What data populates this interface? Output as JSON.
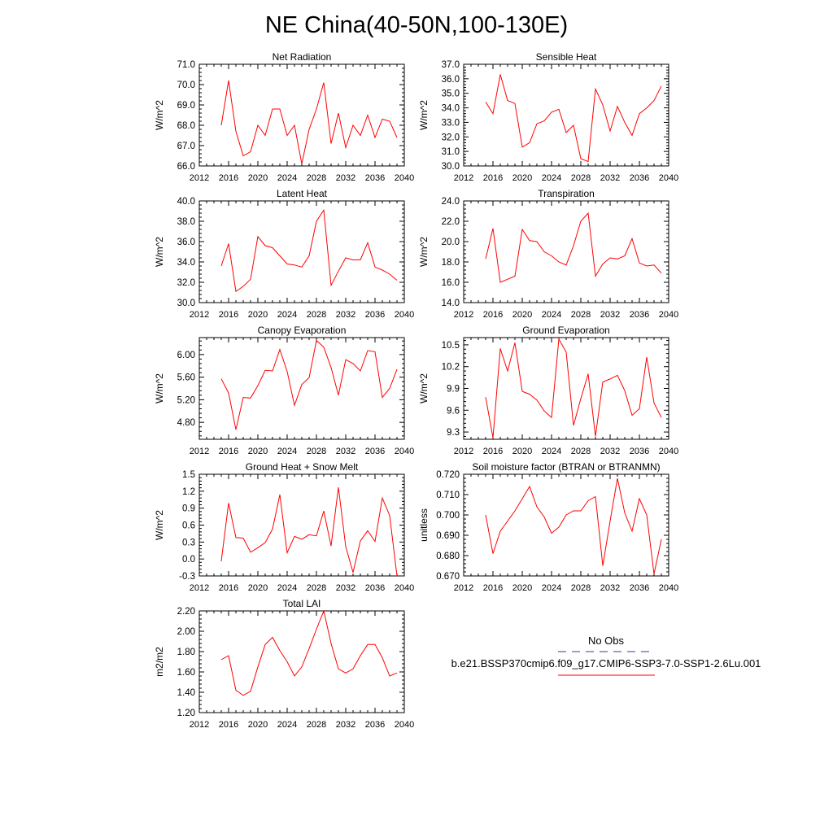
{
  "page_title": "NE China(40-50N,100-130E)",
  "legend": {
    "obs_label": "No Obs",
    "obs_color": "#3a3a9a",
    "model_label": "b.e21.BSSP370cmip6.f09_g17.CMIP6-SSP3-7.0-SSP1-2.6Lu.001",
    "model_color": "#ff0000"
  },
  "x_ticks": [
    "2012",
    "2016",
    "2020",
    "2024",
    "2028",
    "2032",
    "2036",
    "2040"
  ],
  "chart_data": [
    {
      "type": "line",
      "title": "Net Radiation",
      "ylabel": "W/m^2",
      "xlim": [
        2012,
        2040
      ],
      "ylim": [
        66.0,
        71.0
      ],
      "yticks": [
        "66.0",
        "67.0",
        "68.0",
        "69.0",
        "70.0",
        "71.0"
      ],
      "series": [
        {
          "x": [
            2015,
            2016,
            2017,
            2018,
            2019,
            2020,
            2021,
            2022,
            2023,
            2024,
            2025,
            2026,
            2027,
            2028,
            2029,
            2030,
            2031,
            2032,
            2033,
            2034,
            2035,
            2036,
            2037,
            2038,
            2039
          ],
          "values": [
            68.0,
            70.2,
            67.7,
            66.5,
            66.7,
            68.0,
            67.5,
            68.8,
            68.8,
            67.5,
            68.0,
            66.1,
            67.8,
            68.8,
            70.1,
            67.1,
            68.6,
            66.9,
            68.0,
            67.5,
            68.5,
            67.4,
            68.3,
            68.2,
            67.4
          ]
        }
      ]
    },
    {
      "type": "line",
      "title": "Sensible Heat",
      "ylabel": "W/m^2",
      "xlim": [
        2012,
        2040
      ],
      "ylim": [
        30.0,
        37.0
      ],
      "yticks": [
        "30.0",
        "31.0",
        "32.0",
        "33.0",
        "34.0",
        "35.0",
        "36.0",
        "37.0"
      ],
      "series": [
        {
          "x": [
            2015,
            2016,
            2017,
            2018,
            2019,
            2020,
            2021,
            2022,
            2023,
            2024,
            2025,
            2026,
            2027,
            2028,
            2029,
            2030,
            2031,
            2032,
            2033,
            2034,
            2035,
            2036,
            2037,
            2038,
            2039
          ],
          "values": [
            34.4,
            33.6,
            36.3,
            34.5,
            34.3,
            31.3,
            31.6,
            32.9,
            33.1,
            33.7,
            33.9,
            32.3,
            32.8,
            30.5,
            30.3,
            35.3,
            34.2,
            32.4,
            34.1,
            33.0,
            32.1,
            33.6,
            34.0,
            34.5,
            35.5
          ]
        }
      ]
    },
    {
      "type": "line",
      "title": "Latent Heat",
      "ylabel": "W/m^2",
      "xlim": [
        2012,
        2040
      ],
      "ylim": [
        30.0,
        40.0
      ],
      "yticks": [
        "30.0",
        "32.0",
        "34.0",
        "36.0",
        "38.0",
        "40.0"
      ],
      "series": [
        {
          "x": [
            2015,
            2016,
            2017,
            2018,
            2019,
            2020,
            2021,
            2022,
            2023,
            2024,
            2025,
            2026,
            2027,
            2028,
            2029,
            2030,
            2031,
            2032,
            2033,
            2034,
            2035,
            2036,
            2037,
            2038,
            2039
          ],
          "values": [
            33.6,
            35.8,
            31.1,
            31.6,
            32.3,
            36.5,
            35.6,
            35.4,
            34.6,
            33.8,
            33.7,
            33.5,
            34.6,
            38.0,
            39.1,
            31.7,
            33.1,
            34.4,
            34.2,
            34.2,
            35.9,
            33.5,
            33.2,
            32.8,
            32.2
          ]
        }
      ]
    },
    {
      "type": "line",
      "title": "Transpiration",
      "ylabel": "W/m^2",
      "xlim": [
        2012,
        2040
      ],
      "ylim": [
        14.0,
        24.0
      ],
      "yticks": [
        "14.0",
        "16.0",
        "18.0",
        "20.0",
        "22.0",
        "24.0"
      ],
      "series": [
        {
          "x": [
            2015,
            2016,
            2017,
            2018,
            2019,
            2020,
            2021,
            2022,
            2023,
            2024,
            2025,
            2026,
            2027,
            2028,
            2029,
            2030,
            2031,
            2032,
            2033,
            2034,
            2035,
            2036,
            2037,
            2038,
            2039
          ],
          "values": [
            18.3,
            21.3,
            16.0,
            16.3,
            16.6,
            21.2,
            20.1,
            20.0,
            19.0,
            18.6,
            18.0,
            17.7,
            19.6,
            22.0,
            22.8,
            16.6,
            17.8,
            18.4,
            18.3,
            18.6,
            20.3,
            17.9,
            17.6,
            17.7,
            16.9
          ]
        }
      ]
    },
    {
      "type": "line",
      "title": "Canopy Evaporation",
      "ylabel": "W/m^2",
      "xlim": [
        2012,
        2040
      ],
      "ylim": [
        4.5,
        6.3
      ],
      "yticks": [
        "4.80",
        "5.20",
        "5.60",
        "6.00"
      ],
      "series": [
        {
          "x": [
            2015,
            2016,
            2017,
            2018,
            2019,
            2020,
            2021,
            2022,
            2023,
            2024,
            2025,
            2026,
            2027,
            2028,
            2029,
            2030,
            2031,
            2032,
            2033,
            2034,
            2035,
            2036,
            2037,
            2038,
            2039
          ],
          "values": [
            5.57,
            5.32,
            4.67,
            5.24,
            5.23,
            5.45,
            5.72,
            5.71,
            6.09,
            5.7,
            5.1,
            5.47,
            5.59,
            6.25,
            6.13,
            5.77,
            5.28,
            5.91,
            5.84,
            5.71,
            6.07,
            6.05,
            5.24,
            5.4,
            5.74
          ]
        }
      ]
    },
    {
      "type": "line",
      "title": "Ground Evaporation",
      "ylabel": "W/m^2",
      "xlim": [
        2012,
        2040
      ],
      "ylim": [
        9.2,
        10.6
      ],
      "yticks": [
        "9.3",
        "9.6",
        "9.9",
        "10.2",
        "10.5"
      ],
      "series": [
        {
          "x": [
            2015,
            2016,
            2017,
            2018,
            2019,
            2020,
            2021,
            2022,
            2023,
            2024,
            2025,
            2026,
            2027,
            2028,
            2029,
            2030,
            2031,
            2032,
            2033,
            2034,
            2035,
            2036,
            2037,
            2038,
            2039
          ],
          "values": [
            9.78,
            9.22,
            10.45,
            10.14,
            10.53,
            9.86,
            9.82,
            9.74,
            9.59,
            9.5,
            10.58,
            10.4,
            9.39,
            9.76,
            10.1,
            9.24,
            9.99,
            10.03,
            10.08,
            9.87,
            9.53,
            9.62,
            10.33,
            9.7,
            9.5
          ]
        }
      ]
    },
    {
      "type": "line",
      "title": "Ground Heat + Snow Melt",
      "ylabel": "W/m^2",
      "xlim": [
        2012,
        2040
      ],
      "ylim": [
        -0.3,
        1.5
      ],
      "yticks": [
        "-0.3",
        "0.0",
        "0.3",
        "0.6",
        "0.9",
        "1.2",
        "1.5"
      ],
      "series": [
        {
          "x": [
            2015,
            2016,
            2017,
            2018,
            2019,
            2020,
            2021,
            2022,
            2023,
            2024,
            2025,
            2026,
            2027,
            2028,
            2029,
            2030,
            2031,
            2032,
            2033,
            2034,
            2035,
            2036,
            2037,
            2038,
            2039
          ],
          "values": [
            -0.04,
            0.99,
            0.38,
            0.37,
            0.12,
            0.2,
            0.29,
            0.53,
            1.14,
            0.11,
            0.4,
            0.35,
            0.43,
            0.41,
            0.85,
            0.23,
            1.27,
            0.22,
            -0.24,
            0.32,
            0.5,
            0.31,
            1.08,
            0.77,
            -0.3
          ]
        }
      ]
    },
    {
      "type": "line",
      "title": "Soil moisture factor (BTRAN or BTRANMN)",
      "ylabel": "unitless",
      "xlim": [
        2012,
        2040
      ],
      "ylim": [
        0.67,
        0.72
      ],
      "yticks": [
        "0.670",
        "0.680",
        "0.690",
        "0.700",
        "0.710",
        "0.720"
      ],
      "series": [
        {
          "x": [
            2015,
            2016,
            2017,
            2018,
            2019,
            2020,
            2021,
            2022,
            2023,
            2024,
            2025,
            2026,
            2027,
            2028,
            2029,
            2030,
            2031,
            2032,
            2033,
            2034,
            2035,
            2036,
            2037,
            2038,
            2039
          ],
          "values": [
            0.7,
            0.681,
            0.692,
            0.697,
            0.702,
            0.708,
            0.714,
            0.704,
            0.699,
            0.691,
            0.694,
            0.7,
            0.702,
            0.702,
            0.707,
            0.709,
            0.675,
            0.697,
            0.718,
            0.701,
            0.692,
            0.708,
            0.7,
            0.671,
            0.688
          ]
        }
      ]
    },
    {
      "type": "line",
      "title": "Total LAI",
      "ylabel": "m2/m2",
      "xlim": [
        2012,
        2040
      ],
      "ylim": [
        1.2,
        2.2
      ],
      "yticks": [
        "1.20",
        "1.40",
        "1.60",
        "1.80",
        "2.00",
        "2.20"
      ],
      "series": [
        {
          "x": [
            2015,
            2016,
            2017,
            2018,
            2019,
            2020,
            2021,
            2022,
            2023,
            2024,
            2025,
            2026,
            2027,
            2028,
            2029,
            2030,
            2031,
            2032,
            2033,
            2034,
            2035,
            2036,
            2037,
            2038,
            2039
          ],
          "values": [
            1.72,
            1.76,
            1.42,
            1.37,
            1.41,
            1.65,
            1.87,
            1.94,
            1.81,
            1.7,
            1.56,
            1.65,
            1.83,
            2.02,
            2.2,
            1.88,
            1.63,
            1.59,
            1.63,
            1.76,
            1.87,
            1.87,
            1.74,
            1.56,
            1.59
          ]
        }
      ]
    }
  ]
}
